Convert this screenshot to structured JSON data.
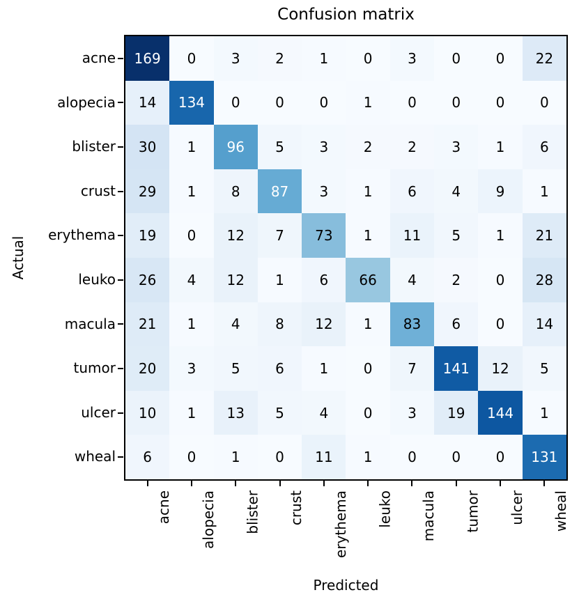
{
  "chart_data": {
    "type": "heatmap",
    "title": "Confusion matrix",
    "xlabel": "Predicted",
    "ylabel": "Actual",
    "categories": [
      "acne",
      "alopecia",
      "blister",
      "crust",
      "erythema",
      "leuko",
      "macula",
      "tumor",
      "ulcer",
      "wheal"
    ],
    "matrix": [
      [
        169,
        0,
        3,
        2,
        1,
        0,
        3,
        0,
        0,
        22
      ],
      [
        14,
        134,
        0,
        0,
        0,
        1,
        0,
        0,
        0,
        0
      ],
      [
        30,
        1,
        96,
        5,
        3,
        2,
        2,
        3,
        1,
        6
      ],
      [
        29,
        1,
        8,
        87,
        3,
        1,
        6,
        4,
        9,
        1
      ],
      [
        19,
        0,
        12,
        7,
        73,
        1,
        11,
        5,
        1,
        21
      ],
      [
        26,
        4,
        12,
        1,
        6,
        66,
        4,
        2,
        0,
        28
      ],
      [
        21,
        1,
        4,
        8,
        12,
        1,
        83,
        6,
        0,
        14
      ],
      [
        20,
        3,
        5,
        6,
        1,
        0,
        7,
        141,
        12,
        5
      ],
      [
        10,
        1,
        13,
        5,
        4,
        0,
        3,
        19,
        144,
        1
      ],
      [
        6,
        0,
        1,
        0,
        11,
        1,
        0,
        0,
        0,
        131
      ]
    ],
    "vmin": 0,
    "vmax": 169,
    "colormap": "Blues",
    "colormap_stops": [
      "#f7fbff",
      "#deebf7",
      "#c6dbef",
      "#9ecae1",
      "#6baed6",
      "#4292c6",
      "#2171b5",
      "#08519c",
      "#08306b"
    ],
    "colors": {
      "text_dark": "#000000",
      "text_light": "#ffffff",
      "frame": "#000000",
      "background": "#ffffff"
    },
    "grid": false,
    "legend": "none"
  }
}
